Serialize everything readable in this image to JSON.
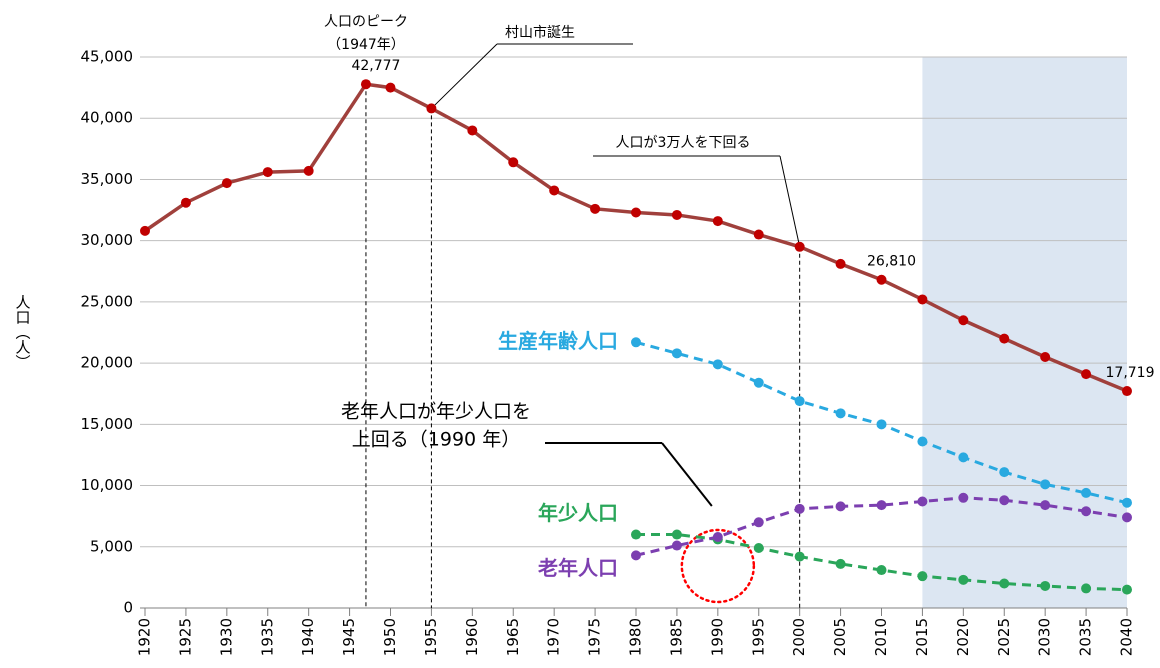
{
  "chart_data": {
    "type": "line",
    "y_label": "人口（人）",
    "xlim": [
      1920,
      2040
    ],
    "ylim": [
      0,
      45000
    ],
    "xticks": [
      1920,
      1925,
      1930,
      1935,
      1940,
      1945,
      1950,
      1955,
      1960,
      1965,
      1970,
      1975,
      1980,
      1985,
      1990,
      1995,
      2000,
      2005,
      2010,
      2015,
      2020,
      2025,
      2030,
      2035,
      2040
    ],
    "yticks": [
      0,
      {
        "value": 5000,
        "label": "5,000"
      },
      {
        "value": 10000,
        "label": "10,000"
      },
      {
        "value": 15000,
        "label": "15,000"
      },
      {
        "value": 20000,
        "label": "20,000"
      },
      {
        "value": 25000,
        "label": "25,000"
      },
      {
        "value": 30000,
        "label": "30,000"
      },
      {
        "value": 35000,
        "label": "35,000"
      },
      {
        "value": 40000,
        "label": "40,000"
      },
      {
        "value": 45000,
        "label": "45,000"
      }
    ],
    "grid": true,
    "projection_span": [
      2015,
      2040
    ],
    "series": [
      {
        "color": "#a0403c",
        "marker_color": "#c00000",
        "dashed": false,
        "x": [
          1920,
          1925,
          1930,
          1935,
          1940,
          1947,
          1950,
          1955,
          1960,
          1965,
          1970,
          1975,
          1980,
          1985,
          1990,
          1995,
          2000,
          2005,
          2010,
          2015,
          2020,
          2025,
          2030,
          2035,
          2040
        ],
        "values": [
          30800,
          33100,
          34700,
          35600,
          35700,
          42777,
          42500,
          40800,
          39000,
          36400,
          34100,
          32600,
          32300,
          32100,
          31600,
          30500,
          29500,
          28100,
          26810,
          25200,
          23500,
          22000,
          20500,
          19100,
          17719
        ],
        "value_labels": [
          null,
          null,
          null,
          null,
          null,
          "42,777",
          null,
          null,
          null,
          null,
          null,
          null,
          null,
          null,
          null,
          null,
          null,
          null,
          "26,810",
          null,
          null,
          null,
          null,
          null,
          "17,719"
        ]
      },
      {
        "name": "生産年齢人口",
        "color": "#29a9e0",
        "dashed": true,
        "x": [
          1980,
          1985,
          1990,
          1995,
          2000,
          2005,
          2010,
          2015,
          2020,
          2025,
          2030,
          2035,
          2040
        ],
        "values": [
          21700,
          20800,
          19900,
          18400,
          16900,
          15900,
          15000,
          13600,
          12300,
          11100,
          10100,
          9400,
          8600
        ]
      },
      {
        "name": "年少人口",
        "color": "#2aa65a",
        "dashed": true,
        "x": [
          1980,
          1985,
          1990,
          1995,
          2000,
          2005,
          2010,
          2015,
          2020,
          2025,
          2030,
          2035,
          2040
        ],
        "values": [
          6000,
          6000,
          5600,
          4900,
          4200,
          3600,
          3100,
          2600,
          2300,
          2000,
          1800,
          1600,
          1500
        ]
      },
      {
        "name": "老年人口",
        "color": "#7c3fb0",
        "dashed": true,
        "x": [
          1980,
          1985,
          1990,
          1995,
          2000,
          2005,
          2010,
          2015,
          2020,
          2025,
          2030,
          2035,
          2040
        ],
        "values": [
          4300,
          5100,
          5800,
          7000,
          8100,
          8300,
          8400,
          8700,
          9000,
          8800,
          8400,
          7900,
          7400
        ]
      }
    ],
    "annotations": [
      {
        "lines": [
          "人口のピーク",
          "（1947年）"
        ],
        "x": 1947
      },
      {
        "lines": [
          "村山市誕生"
        ],
        "x": 1955
      },
      {
        "lines": [
          "人口が3万人を下回る"
        ],
        "x": 2000
      },
      {
        "lines": [
          "老年人口が年少人口を",
          "上回る（1990 年）"
        ],
        "x": 1990
      }
    ]
  }
}
